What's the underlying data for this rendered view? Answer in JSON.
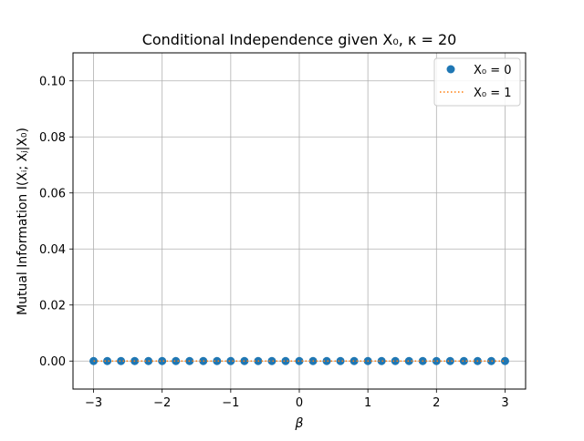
{
  "chart_data": {
    "type": "scatter",
    "title": "Conditional Independence given X₀, κ = 20",
    "xlabel": "β",
    "ylabel": "Mutual Information I(Xᵢ; Xⱼ|X₀)",
    "xlim": [
      -3.3,
      3.3
    ],
    "ylim": [
      -0.01,
      0.11
    ],
    "xticks": [
      -3,
      -2,
      -1,
      0,
      1,
      2,
      3
    ],
    "xtick_labels": [
      "−3",
      "−2",
      "−1",
      "0",
      "1",
      "2",
      "3"
    ],
    "yticks": [
      0.0,
      0.02,
      0.04,
      0.06,
      0.08,
      0.1
    ],
    "ytick_labels": [
      "0.00",
      "0.02",
      "0.04",
      "0.06",
      "0.08",
      "0.10"
    ],
    "grid": true,
    "legend_position": "top-right",
    "series": [
      {
        "name": "X₀ = 0",
        "style": "markers",
        "color": "#1f77b4",
        "x": [
          -3.0,
          -2.8,
          -2.6,
          -2.4,
          -2.2,
          -2.0,
          -1.8,
          -1.6,
          -1.4,
          -1.2,
          -1.0,
          -0.8,
          -0.6,
          -0.4,
          -0.2,
          0.0,
          0.2,
          0.4,
          0.6,
          0.8,
          1.0,
          1.2,
          1.4,
          1.6,
          1.8,
          2.0,
          2.2,
          2.4,
          2.6,
          2.8,
          3.0
        ],
        "y": [
          0,
          0,
          0,
          0,
          0,
          0,
          0,
          0,
          0,
          0,
          0,
          0,
          0,
          0,
          0,
          0,
          0,
          0,
          0,
          0,
          0,
          0,
          0,
          0,
          0,
          0,
          0,
          0,
          0,
          0,
          0
        ]
      },
      {
        "name": "X₀ = 1",
        "style": "dotted-line",
        "color": "#ff7f0e",
        "x": [
          -3.0,
          -2.8,
          -2.6,
          -2.4,
          -2.2,
          -2.0,
          -1.8,
          -1.6,
          -1.4,
          -1.2,
          -1.0,
          -0.8,
          -0.6,
          -0.4,
          -0.2,
          0.0,
          0.2,
          0.4,
          0.6,
          0.8,
          1.0,
          1.2,
          1.4,
          1.6,
          1.8,
          2.0,
          2.2,
          2.4,
          2.6,
          2.8,
          3.0
        ],
        "y": [
          0,
          0,
          0,
          0,
          0,
          0,
          0,
          0,
          0,
          0,
          0,
          0,
          0,
          0,
          0,
          0,
          0,
          0,
          0,
          0,
          0,
          0,
          0,
          0,
          0,
          0,
          0,
          0,
          0,
          0,
          0
        ]
      }
    ]
  }
}
